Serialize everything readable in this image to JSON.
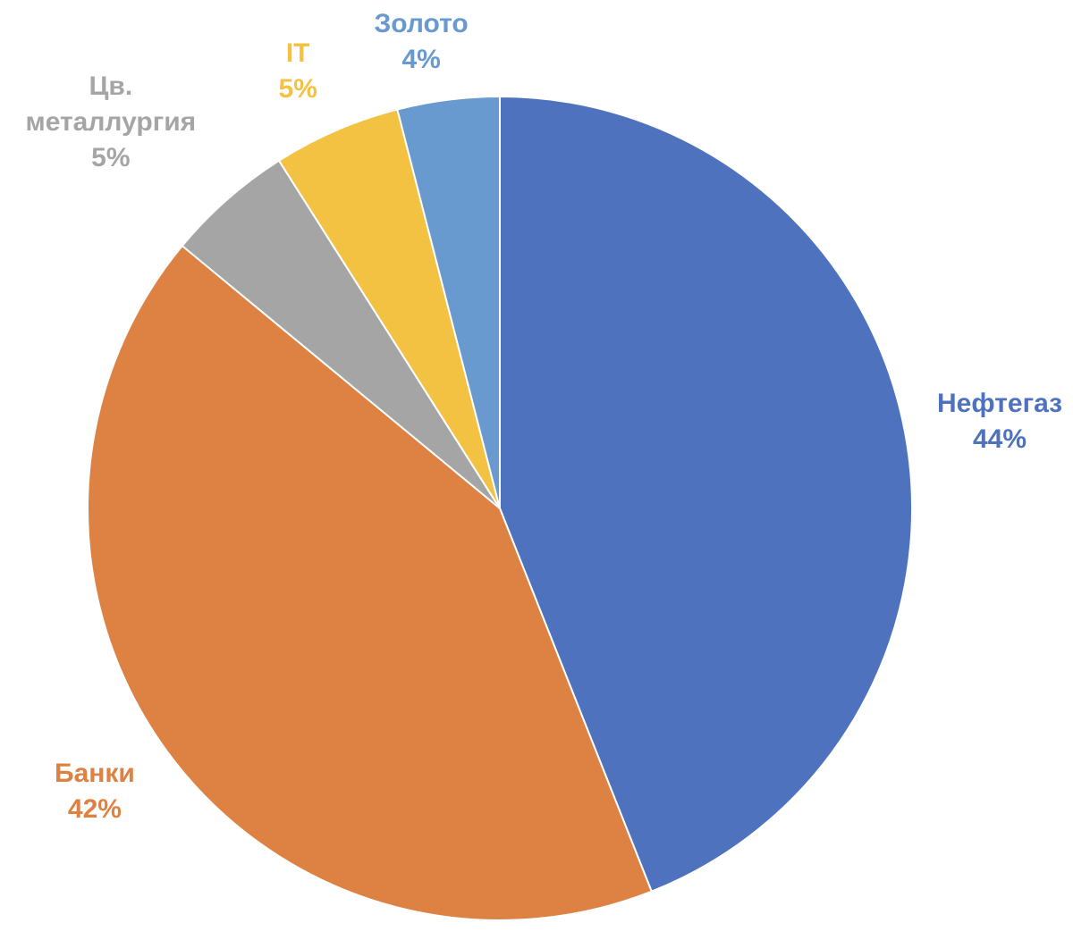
{
  "chart_data": {
    "type": "pie",
    "title": "",
    "slices": [
      {
        "name": "Нефтегаз",
        "label_lines": [
          "Нефтегаз"
        ],
        "percent_label": "44%",
        "value": 44,
        "color": "#4E72BD"
      },
      {
        "name": "Банки",
        "label_lines": [
          "Банки"
        ],
        "percent_label": "42%",
        "value": 42,
        "color": "#DE8244"
      },
      {
        "name": "Цв. металлургия",
        "label_lines": [
          "Цв.",
          "металлургия"
        ],
        "percent_label": "5%",
        "value": 5,
        "color": "#A5A5A5"
      },
      {
        "name": "IT",
        "label_lines": [
          "IT"
        ],
        "percent_label": "5%",
        "value": 5,
        "color": "#F4C242"
      },
      {
        "name": "Золото",
        "label_lines": [
          "Золото"
        ],
        "percent_label": "4%",
        "value": 4,
        "color": "#6899CF"
      }
    ],
    "start_angle": "12 o'clock",
    "direction": "clockwise",
    "legend": "none",
    "data_labels": "outside"
  }
}
